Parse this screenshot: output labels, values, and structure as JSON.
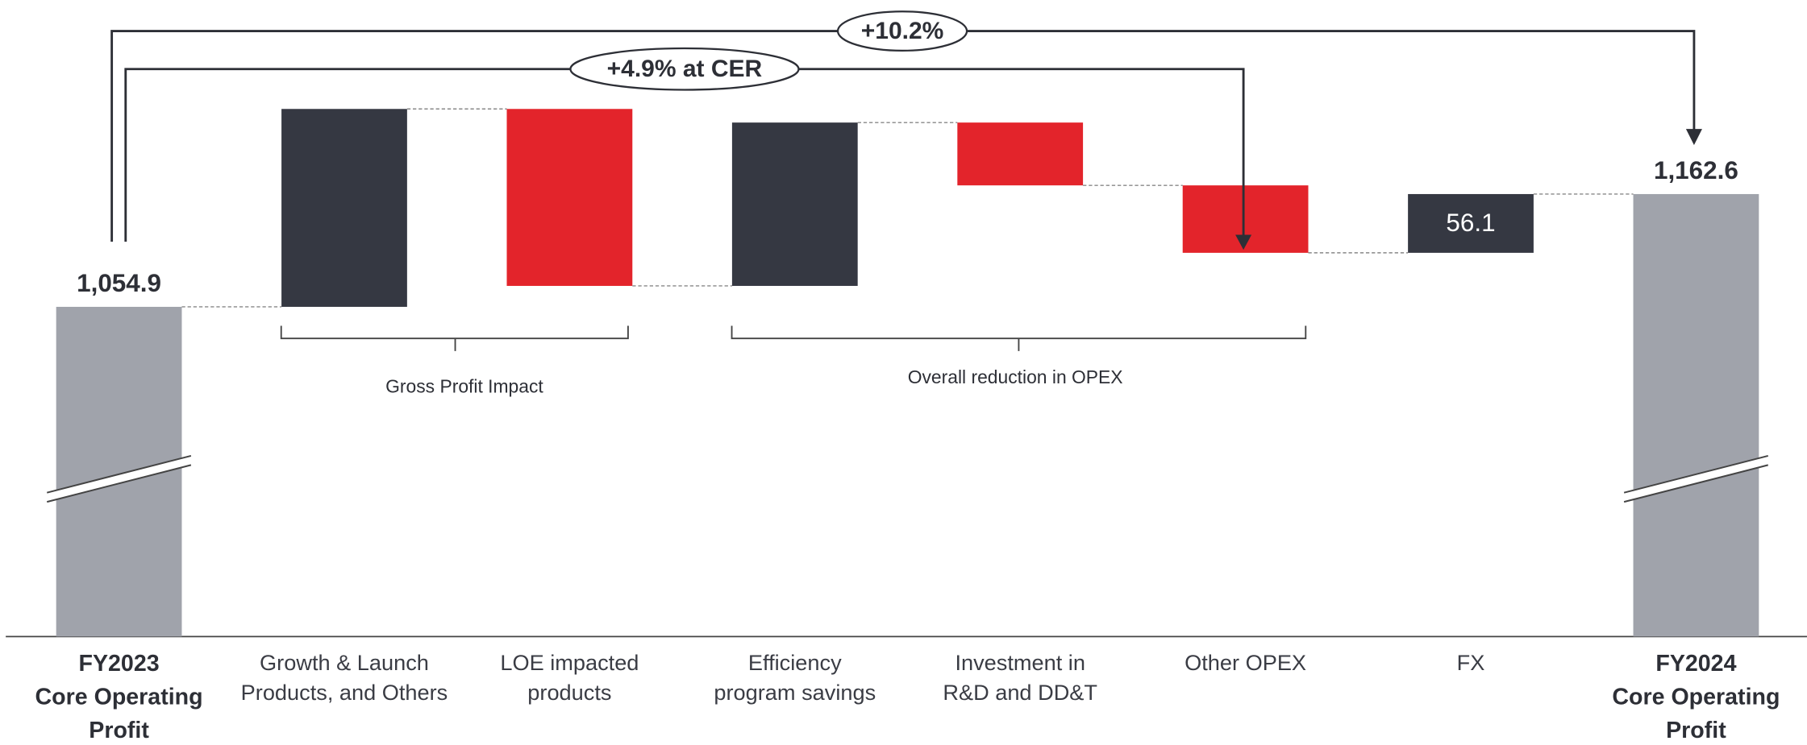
{
  "chart_data": {
    "type": "waterfall",
    "categories": [
      "FY2023\nCore Operating\nProfit",
      "Growth & Launch\nProducts, and Others",
      "LOE impacted\nproducts",
      "Efficiency\nprogram savings",
      "Investment in\nR&D and DD&T",
      "Other OPEX",
      "FX",
      "FY2024\nCore Operating\nProfit"
    ],
    "values": [
      1054.9,
      189,
      -169,
      156,
      -60,
      -64.4,
      56.1,
      1162.6
    ],
    "value_labels": [
      "1,054.9",
      null,
      null,
      null,
      null,
      null,
      "56.1",
      "1,162.6"
    ],
    "colors": {
      "total": "#a0a3ab",
      "increase": "#353842",
      "decrease": "#e3242b"
    },
    "ylim": [
      740,
      1260
    ],
    "brackets": [
      "Gross Profit Impact",
      "Overall reduction in OPEX"
    ],
    "annotations": [
      "+10.2%",
      "+4.9% at CER"
    ]
  }
}
